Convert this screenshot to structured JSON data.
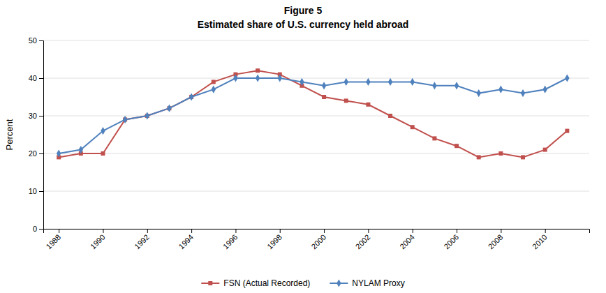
{
  "chart_data": {
    "type": "line",
    "title": "Figure 5",
    "subtitle": "Estimated share of U.S. currency held abroad",
    "ylabel": "Percent",
    "x": [
      1988,
      1989,
      1990,
      1991,
      1992,
      1993,
      1994,
      1995,
      1996,
      1997,
      1998,
      1999,
      2000,
      2001,
      2002,
      2003,
      2004,
      2005,
      2006,
      2007,
      2008,
      2009,
      2010,
      2011
    ],
    "series": [
      {
        "name": "FSN (Actual Recorded)",
        "color": "#C0504D",
        "marker": "square",
        "values": [
          19,
          20,
          20,
          29,
          30,
          32,
          35,
          39,
          41,
          42,
          41,
          38,
          35,
          34,
          33,
          30,
          27,
          24,
          22,
          19,
          20,
          19,
          21,
          26
        ]
      },
      {
        "name": "NYLAM Proxy",
        "color": "#4F81BD",
        "marker": "diamond",
        "values": [
          20,
          21,
          26,
          29,
          30,
          32,
          35,
          37,
          40,
          40,
          40,
          39,
          38,
          39,
          39,
          39,
          39,
          38,
          38,
          36,
          37,
          36,
          37,
          40
        ]
      }
    ],
    "xlim": [
      1987.3,
      2012
    ],
    "xticks": [
      1988,
      1990,
      1992,
      1994,
      1996,
      1998,
      2000,
      2002,
      2004,
      2006,
      2008,
      2010
    ],
    "ylim": [
      0,
      50
    ],
    "yticks": [
      0,
      10,
      20,
      30,
      40,
      50
    ],
    "grid": true,
    "legend": "bottom"
  }
}
